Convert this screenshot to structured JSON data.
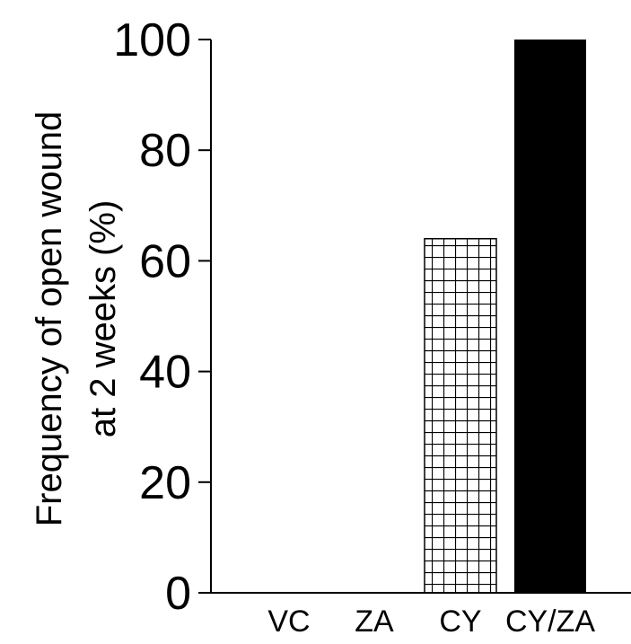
{
  "chart_data": {
    "type": "bar",
    "categories": [
      "VC",
      "ZA",
      "CY",
      "CY/ZA"
    ],
    "values": [
      0,
      0,
      64,
      100
    ],
    "patterns": [
      "none",
      "none",
      "grid",
      "solid"
    ],
    "ylabel_lines": [
      "Frequency of open wound",
      "at 2 weeks (%)"
    ],
    "xlabel": "",
    "ylim": [
      0,
      100
    ],
    "yticks": [
      0,
      20,
      40,
      60,
      80,
      100
    ],
    "grid": false,
    "colors": {
      "bar_solid": "#000000",
      "hatch": "#000000",
      "axis": "#000000",
      "background": "#ffffff"
    }
  }
}
